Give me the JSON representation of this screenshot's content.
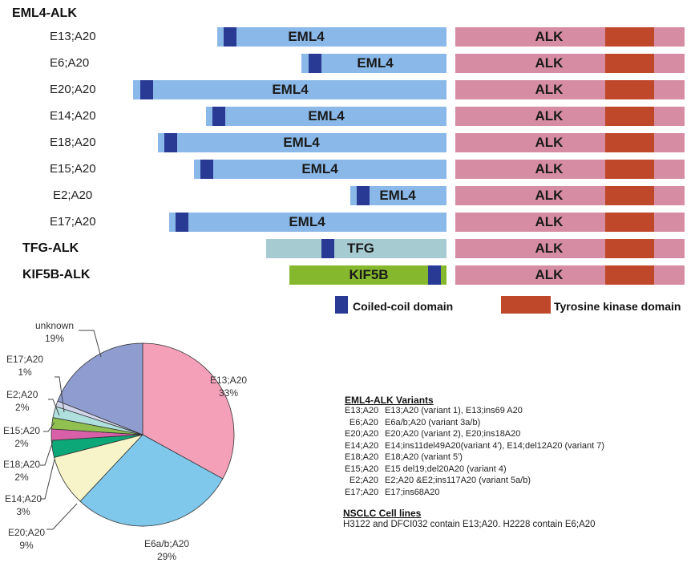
{
  "diagram": {
    "heading_eml4": "EML4-ALK",
    "fusions": [
      {
        "label": "E13;A20",
        "partner": "EML4",
        "kind": "eml4"
      },
      {
        "label": "E6;A20",
        "partner": "EML4",
        "kind": "eml4"
      },
      {
        "label": "E20;A20",
        "partner": "EML4",
        "kind": "eml4"
      },
      {
        "label": "E14;A20",
        "partner": "EML4",
        "kind": "eml4"
      },
      {
        "label": "E18;A20",
        "partner": "EML4",
        "kind": "eml4"
      },
      {
        "label": "E15;A20",
        "partner": "EML4",
        "kind": "eml4"
      },
      {
        "label": "E2;A20",
        "partner": "EML4",
        "kind": "eml4"
      },
      {
        "label": "E17;A20",
        "partner": "EML4",
        "kind": "eml4"
      },
      {
        "label": "TFG-ALK",
        "partner": "TFG",
        "kind": "tfg"
      },
      {
        "label": "KIF5B-ALK",
        "partner": "KIF5B",
        "kind": "kif5b"
      }
    ],
    "alk_label": "ALK",
    "legend": {
      "coiled_coil": "Coiled-coil domain",
      "tyrosine_kinase": "Tyrosine kinase domain"
    },
    "colors": {
      "eml4": "#8ab8e8",
      "tfg": "#a6ccd2",
      "kif5b": "#86b82e",
      "coiled_coil": "#283a94",
      "alk": "#d68ca3",
      "tyrosine_kinase": "#c0482a"
    }
  },
  "chart_data": {
    "type": "pie",
    "slices": [
      {
        "label": "E13;A20",
        "pct_label": "33%",
        "value": 33,
        "color": "#f4a0b8"
      },
      {
        "label": "E6a/b;A20",
        "pct_label": "29%",
        "value": 29,
        "color": "#7fc8ec"
      },
      {
        "label": "E20;A20",
        "pct_label": "9%",
        "value": 9,
        "color": "#f6f4c8"
      },
      {
        "label": "E14;A20",
        "pct_label": "3%",
        "value": 3,
        "color": "#0ca878"
      },
      {
        "label": "E18;A20",
        "pct_label": "2%",
        "value": 2,
        "color": "#d860a8"
      },
      {
        "label": "E15;A20",
        "pct_label": "2%",
        "value": 2,
        "color": "#90c050"
      },
      {
        "label": "E2;A20",
        "pct_label": "2%",
        "value": 2,
        "color": "#b0e0de"
      },
      {
        "label": "E17;A20",
        "pct_label": "1%",
        "value": 1,
        "color": "#d2d6ec"
      },
      {
        "label": "unknown",
        "pct_label": "19%",
        "value": 19,
        "color": "#8e9ccf"
      }
    ]
  },
  "variants": {
    "title": "EML4-ALK Variants",
    "rows": [
      {
        "key": "E13;A20",
        "desc": "E13;A20 (variant 1), E13;ins69 A20"
      },
      {
        "key": "E6;A20",
        "desc": "E6a/b;A20 (variant 3a/b)"
      },
      {
        "key": "E20;A20",
        "desc": "E20;A20 (variant 2), E20;ins18A20"
      },
      {
        "key": "E14;A20",
        "desc": "E14;ins11del49A20(variant 4'), E14;del12A20 (variant 7)"
      },
      {
        "key": "E18;A20",
        "desc": "E18;A20 (variant 5')"
      },
      {
        "key": "E15;A20",
        "desc": "E15 del19;del20A20 (variant 4)"
      },
      {
        "key": "E2;A20",
        "desc": "E2;A20 &E2;ins117A20 (variant 5a/b)"
      },
      {
        "key": "E17;A20",
        "desc": "E17;ins68A20"
      }
    ],
    "cell_title": "NSCLC Cell lines",
    "cell_text": "H3122 and DFCI032 contain E13;A20. H2228 contain E6;A20"
  }
}
